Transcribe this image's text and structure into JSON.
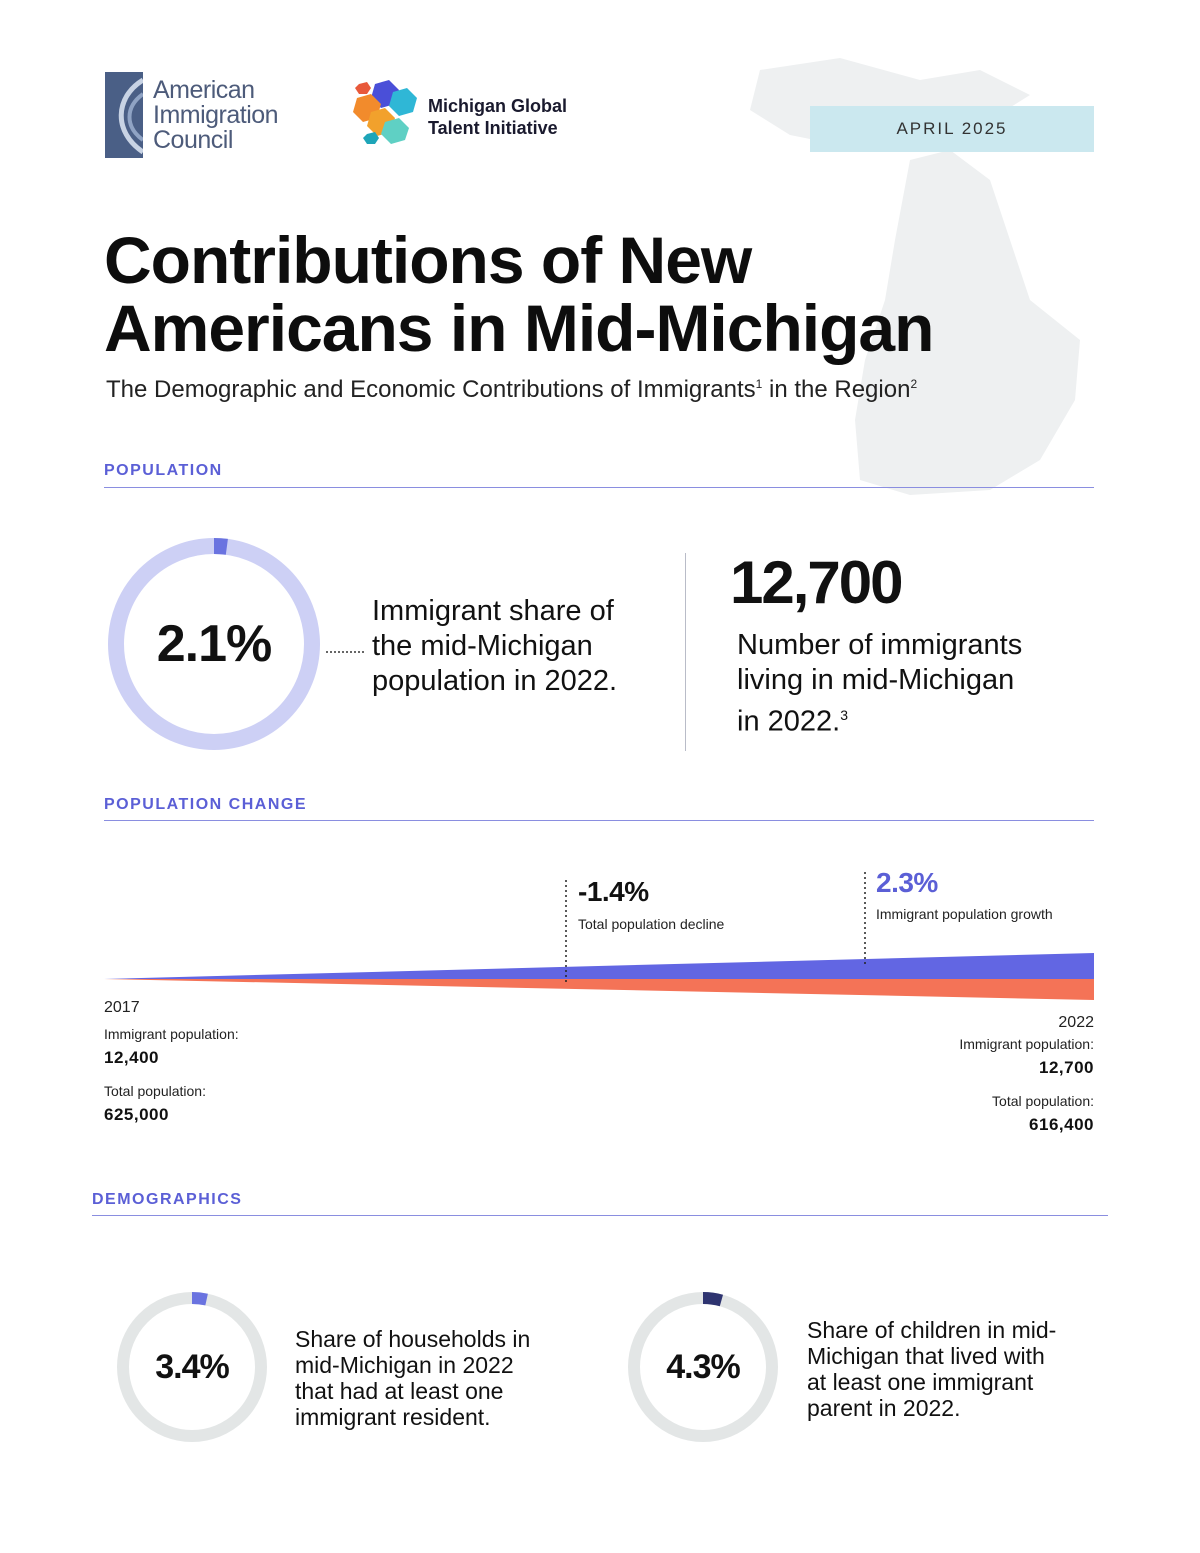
{
  "header": {
    "aic_logo_lines": [
      "American",
      "Immigration",
      "Council"
    ],
    "mgti_logo_lines": [
      "Michigan Global",
      "Talent Initiative"
    ],
    "date": "APRIL 2025"
  },
  "title_lines": [
    "Contributions of New",
    "Americans in Mid-Michigan"
  ],
  "subtitle": {
    "part1": "The Demographic and Economic Contributions of Immigrants",
    "sup1": "1",
    "part2": " in the Region",
    "sup2": "2"
  },
  "population": {
    "label": "POPULATION",
    "share_value": "2.1%",
    "share_fraction": 0.021,
    "share_text_lines": [
      "Immigrant share of",
      "the mid-Michigan",
      "population in 2022."
    ],
    "count_value": "12,700",
    "count_text_lines": [
      "Number of immigrants",
      "living in mid-Michigan",
      "in 2022."
    ],
    "count_sup": "3"
  },
  "population_change": {
    "label": "POPULATION CHANGE",
    "total_change": "-1.4%",
    "total_change_label": "Total population decline",
    "immigrant_change": "2.3%",
    "immigrant_change_label": "Immigrant population growth",
    "start": {
      "year": "2017",
      "immigrant_label": "Immigrant population:",
      "immigrant_value": "12,400",
      "total_label": "Total population:",
      "total_value": "625,000"
    },
    "end": {
      "year": "2022",
      "immigrant_label": "Immigrant population:",
      "immigrant_value": "12,700",
      "total_label": "Total population:",
      "total_value": "616,400"
    }
  },
  "demographics": {
    "label": "DEMOGRAPHICS",
    "households_value": "3.4%",
    "households_fraction": 0.034,
    "households_text_lines": [
      "Share of households in",
      "mid-Michigan in 2022",
      "that had at least one",
      "immigrant resident."
    ],
    "children_value": "4.3%",
    "children_fraction": 0.043,
    "children_text_lines": [
      "Share of children in mid-",
      "Michigan that lived with",
      "at least one immigrant",
      "parent in 2022."
    ]
  },
  "colors": {
    "accent_purple": "#5b5fd6",
    "donut_track_light": "#cdd0f5",
    "donut_track_grey": "#e3e6e6",
    "donut_fill_blue": "#6a73e0",
    "donut_fill_navy": "#2e3470",
    "growth_band": "#6266e3",
    "decline_band": "#f47357",
    "date_box": "#cbe8ef"
  }
}
